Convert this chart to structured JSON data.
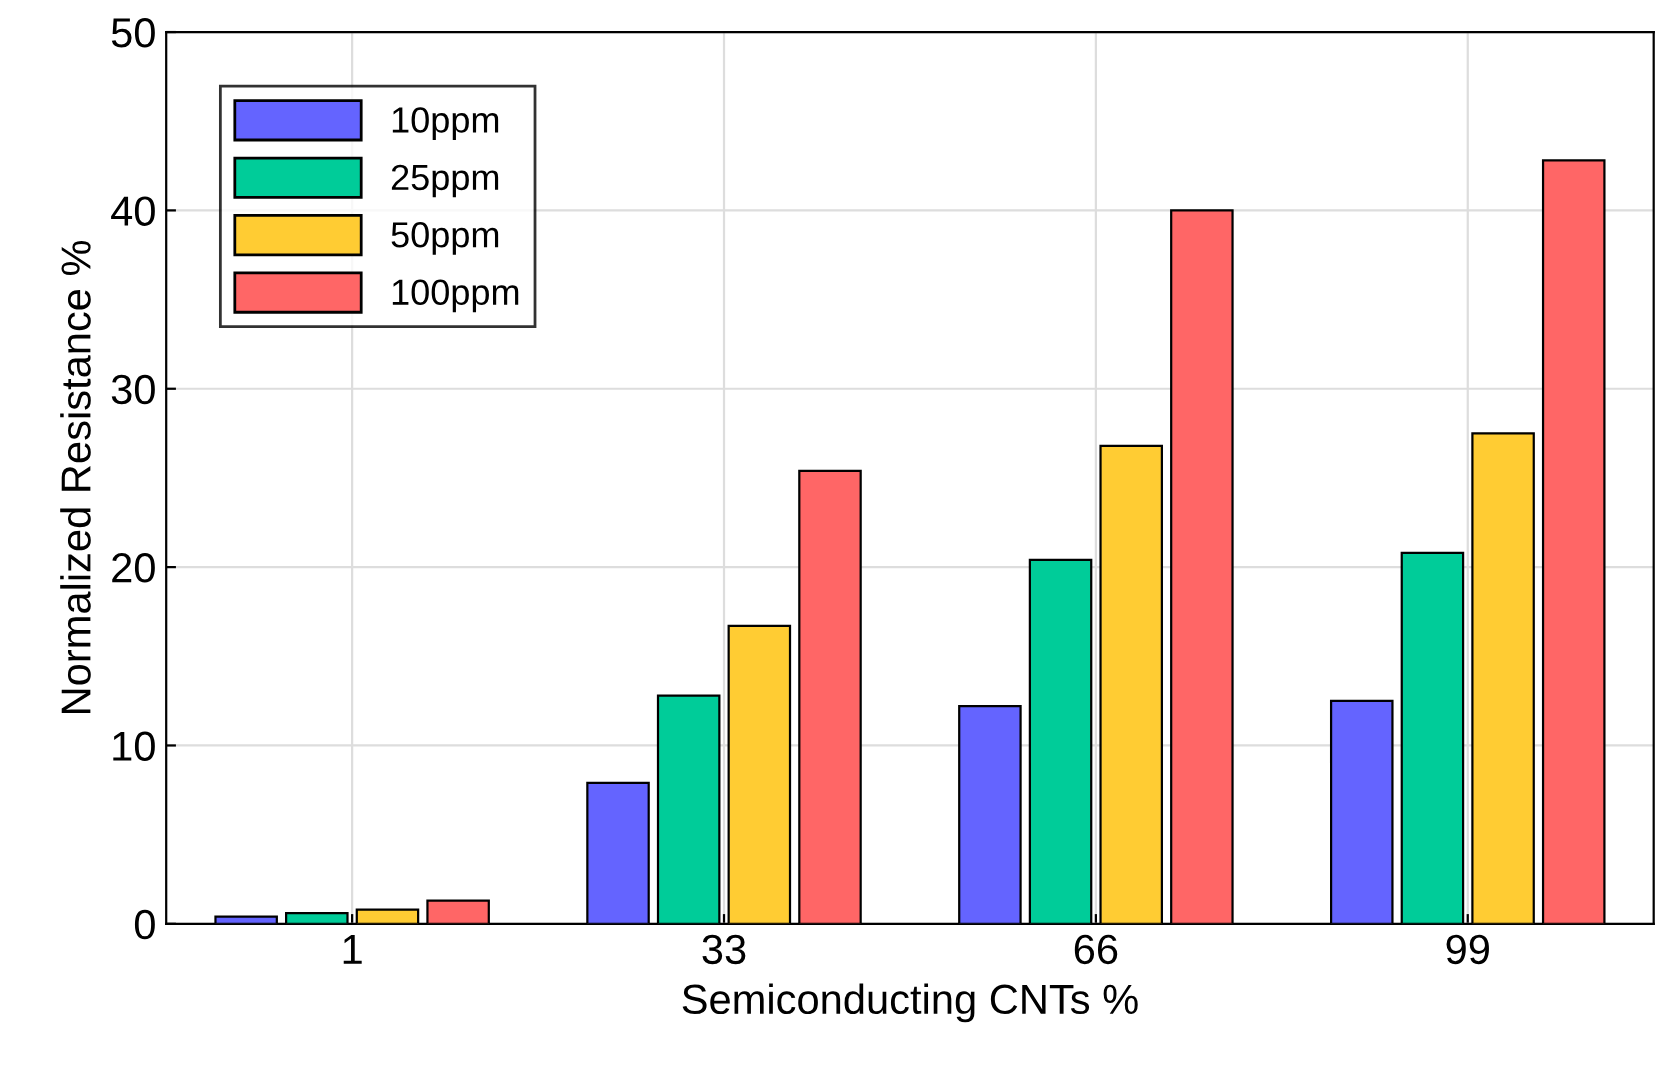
{
  "chart_data": {
    "type": "bar",
    "xlabel": "Semiconducting CNTs %",
    "ylabel": "Normalized Resistance %",
    "categories": [
      "1",
      "33",
      "66",
      "99"
    ],
    "series": [
      {
        "name": "10ppm",
        "color": "#6464ff",
        "values": [
          0.4,
          7.9,
          12.2,
          12.5
        ]
      },
      {
        "name": "25ppm",
        "color": "#00cc99",
        "values": [
          0.6,
          12.8,
          20.4,
          20.8
        ]
      },
      {
        "name": "50ppm",
        "color": "#ffcc33",
        "values": [
          0.8,
          16.7,
          26.8,
          27.5
        ]
      },
      {
        "name": "100ppm",
        "color": "#ff6666",
        "values": [
          1.3,
          25.4,
          40.0,
          42.8
        ]
      }
    ],
    "ylim": [
      0,
      50
    ],
    "yticks": [
      0,
      10,
      20,
      30,
      40,
      50
    ],
    "grid": true,
    "legend": "top left"
  }
}
